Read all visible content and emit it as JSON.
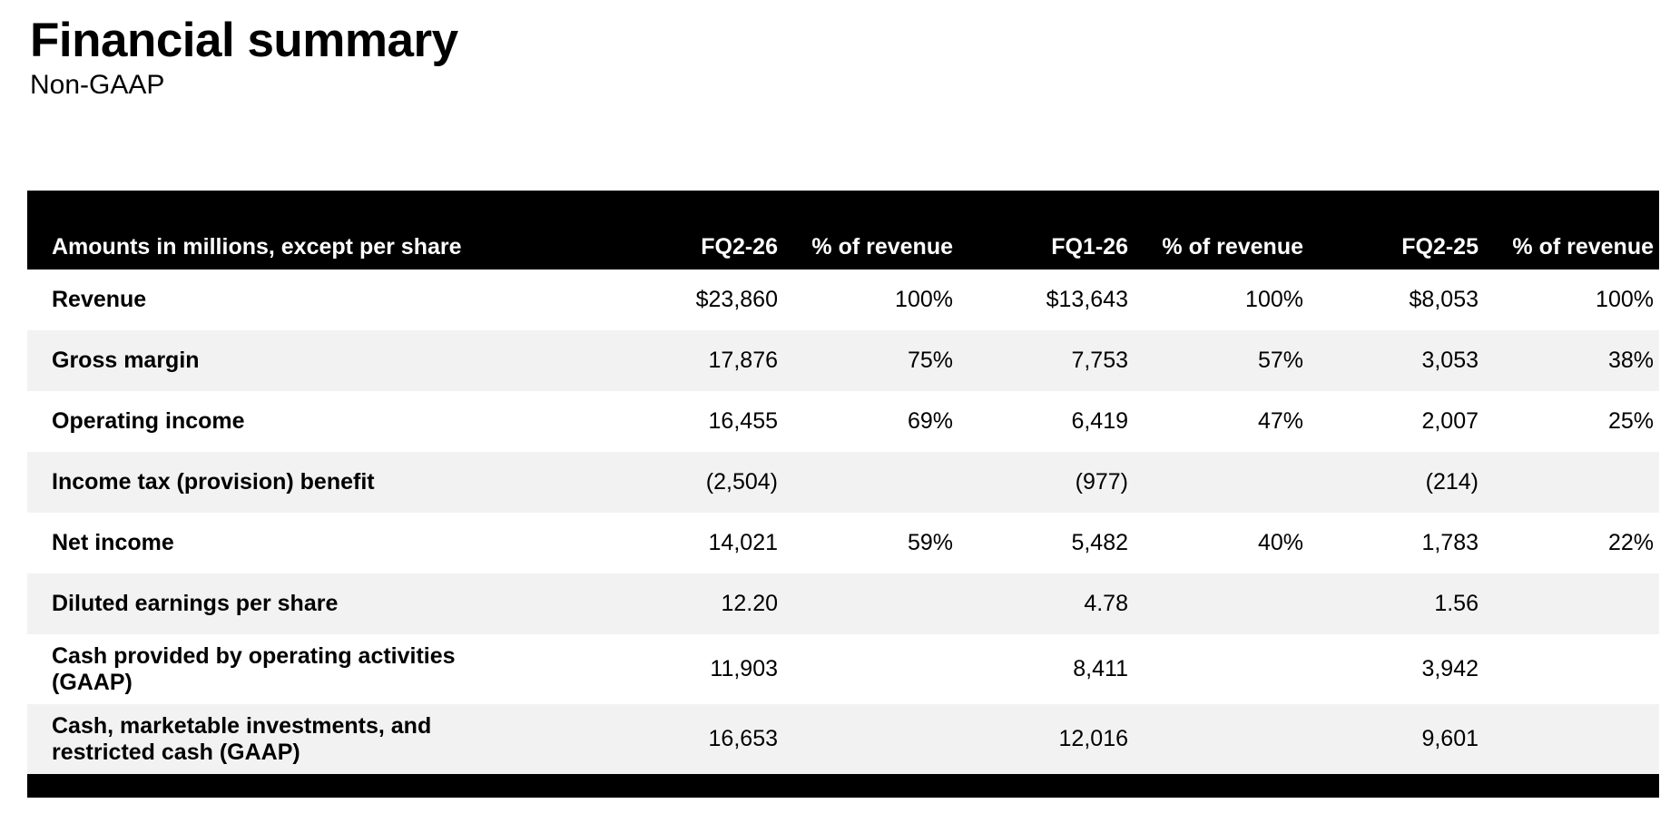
{
  "page": {
    "title": "Financial summary",
    "subtitle": "Non-GAAP"
  },
  "colors": {
    "header_bg": "#000000",
    "header_text": "#ffffff",
    "row_alt_bg": "#f2f2f2",
    "body_text": "#000000",
    "footer_bar": "#000000"
  },
  "table": {
    "columns": [
      "Amounts in millions, except per share",
      "FQ2-26",
      "% of revenue",
      "FQ1-26",
      "% of revenue",
      "FQ2-25",
      "% of revenue"
    ],
    "rows": [
      {
        "label": "Revenue",
        "values": [
          "$23,860",
          "100%",
          "$13,643",
          "100%",
          "$8,053",
          "100%"
        ]
      },
      {
        "label": "Gross margin",
        "values": [
          "17,876",
          "75%",
          "7,753",
          "57%",
          "3,053",
          "38%"
        ]
      },
      {
        "label": "Operating income",
        "values": [
          "16,455",
          "69%",
          "6,419",
          "47%",
          "2,007",
          "25%"
        ]
      },
      {
        "label": "Income tax (provision) benefit",
        "values": [
          "(2,504)",
          "",
          "(977)",
          "",
          "(214)",
          ""
        ]
      },
      {
        "label": "Net income",
        "values": [
          "14,021",
          "59%",
          "5,482",
          "40%",
          "1,783",
          "22%"
        ]
      },
      {
        "label": "Diluted earnings per share",
        "values": [
          "12.20",
          "",
          "4.78",
          "",
          "1.56",
          ""
        ]
      },
      {
        "label": "Cash provided by operating activities (GAAP)",
        "values": [
          "11,903",
          "",
          "8,411",
          "",
          "3,942",
          ""
        ]
      },
      {
        "label": "Cash, marketable investments, and restricted cash (GAAP)",
        "values": [
          "16,653",
          "",
          "12,016",
          "",
          "9,601",
          ""
        ]
      }
    ]
  }
}
